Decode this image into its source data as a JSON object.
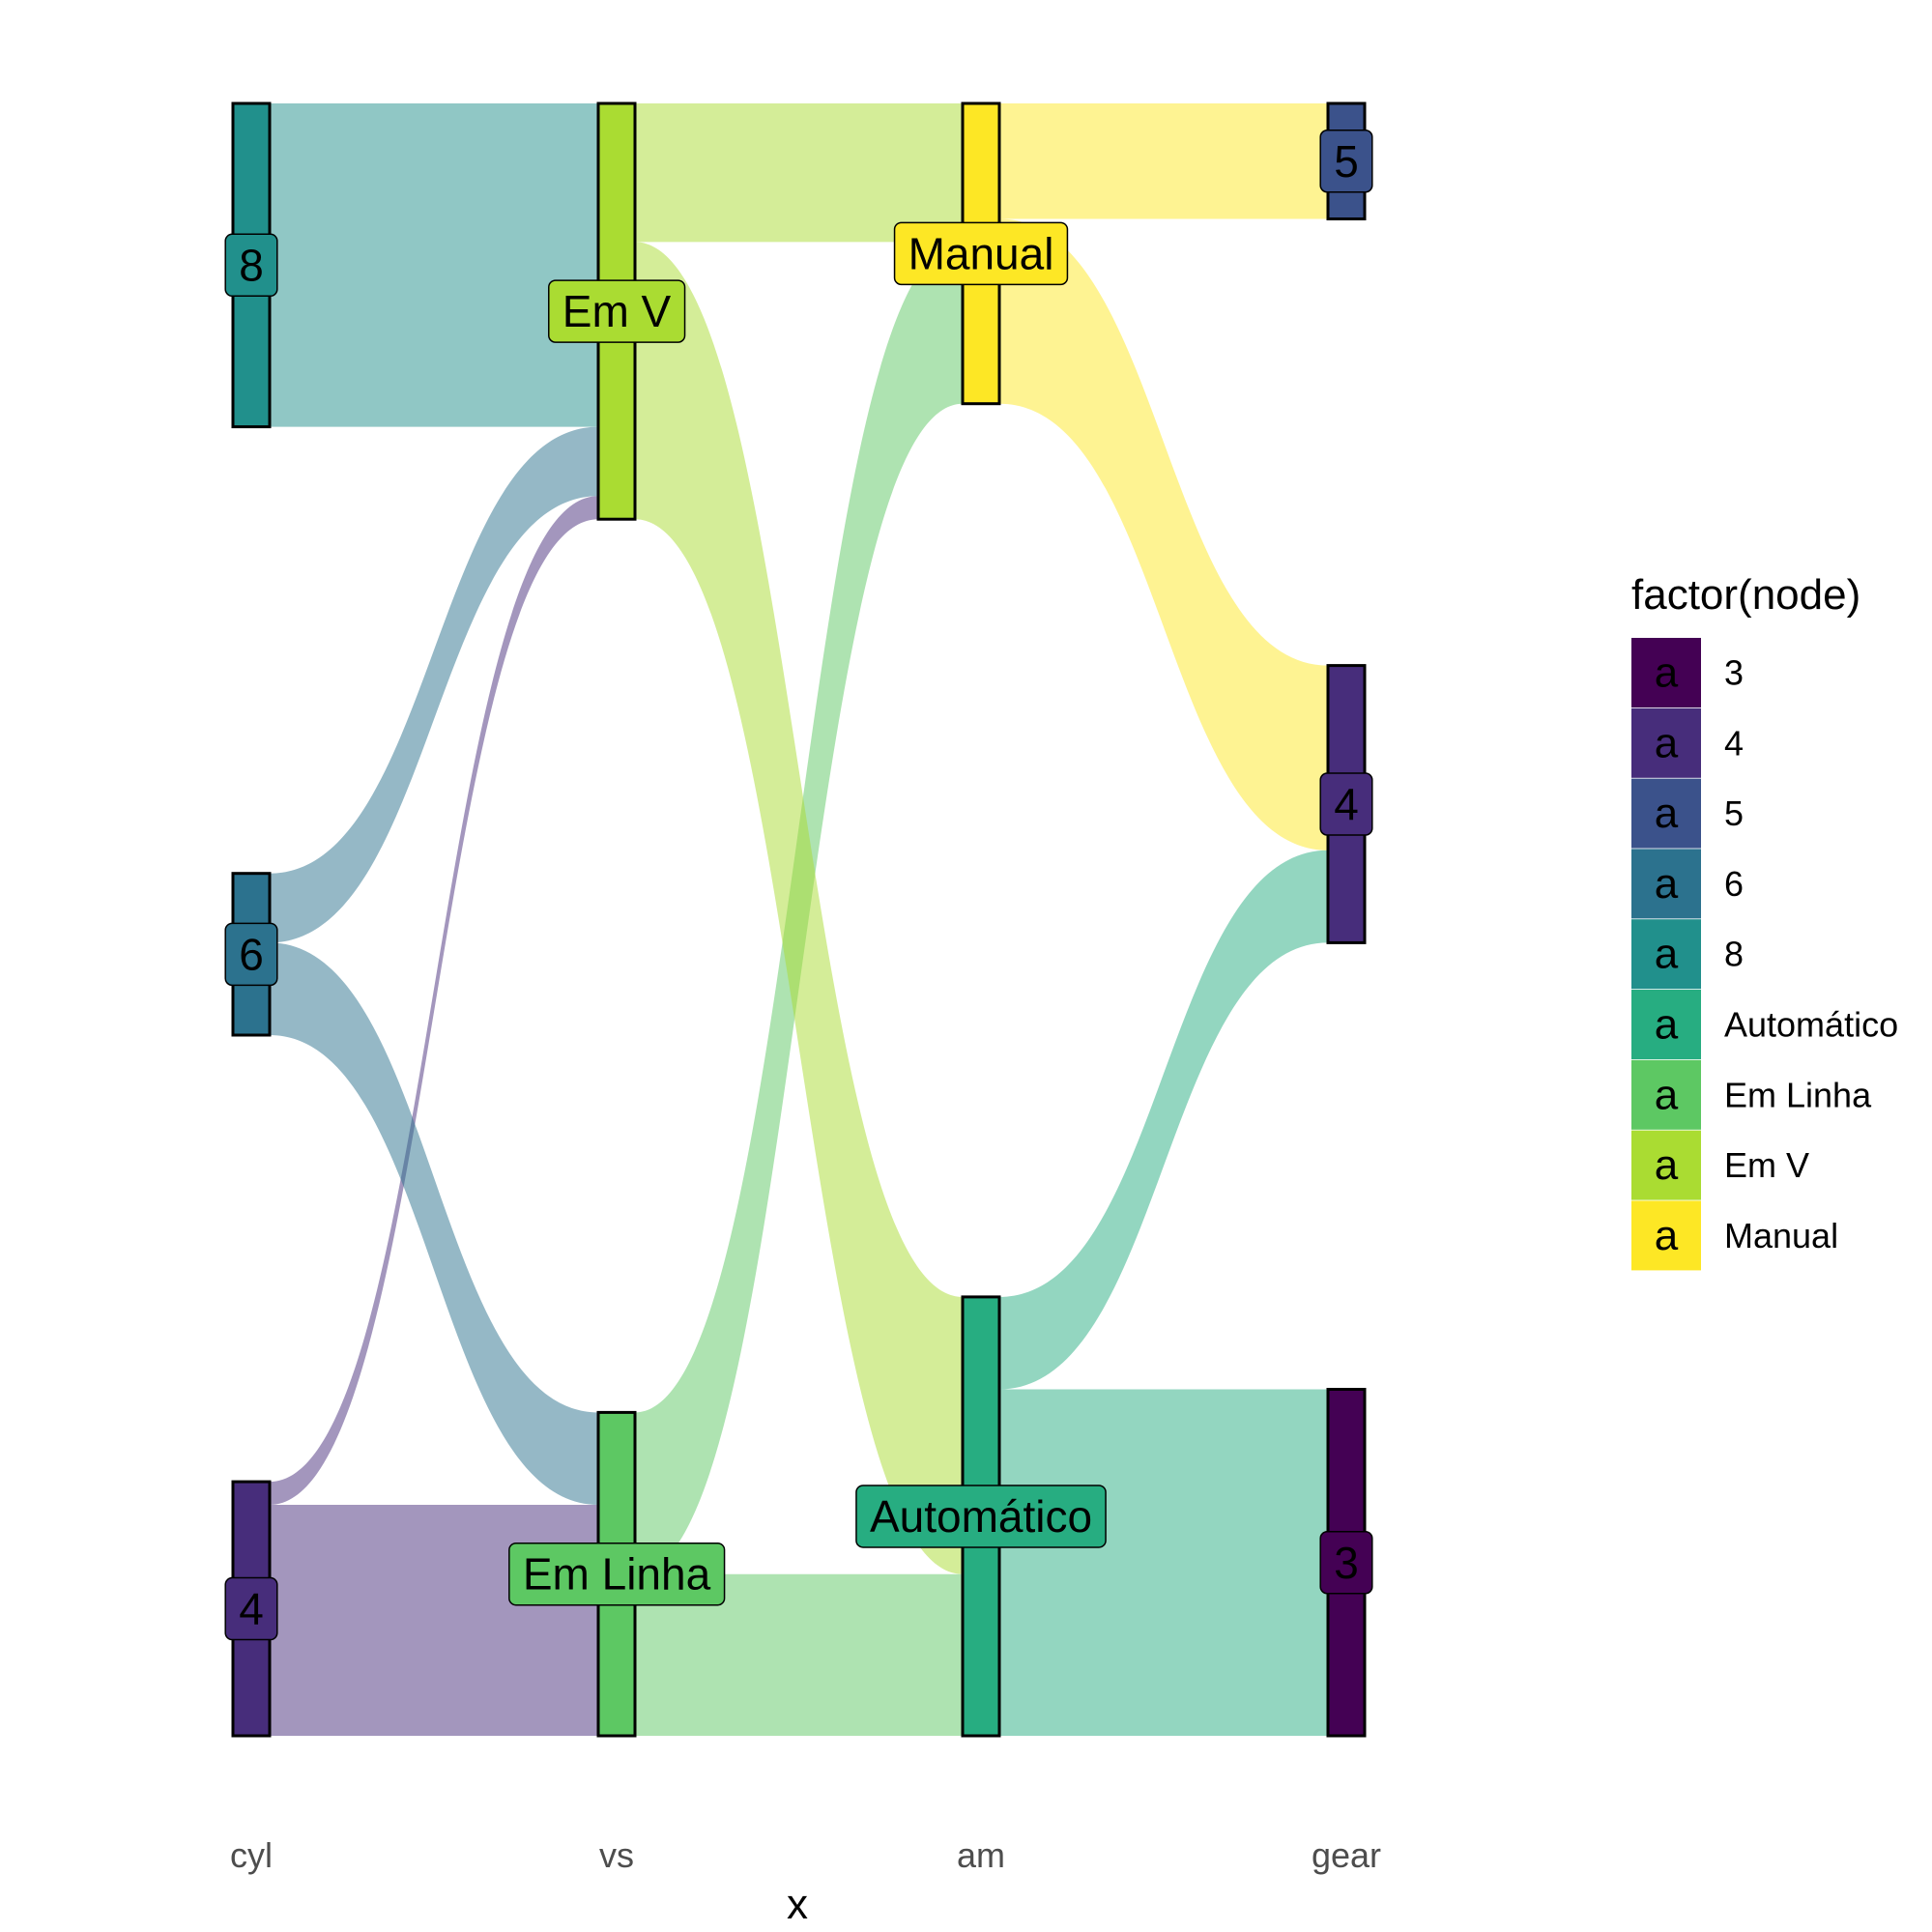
{
  "chart_data": {
    "type": "sankey",
    "title": "",
    "xlabel": "x",
    "ylabel": "",
    "axes": [
      "cyl",
      "vs",
      "am",
      "gear"
    ],
    "total": 32,
    "nodes": [
      {
        "axis": "cyl",
        "key": "cyl-4",
        "label": "4",
        "fill_key": "4",
        "count": 11
      },
      {
        "axis": "cyl",
        "key": "cyl-6",
        "label": "6",
        "fill_key": "6",
        "count": 7
      },
      {
        "axis": "cyl",
        "key": "cyl-8",
        "label": "8",
        "fill_key": "8",
        "count": 14
      },
      {
        "axis": "vs",
        "key": "vs-emlinha",
        "label": "Em Linha",
        "fill_key": "Em Linha",
        "count": 14
      },
      {
        "axis": "vs",
        "key": "vs-emv",
        "label": "Em V",
        "fill_key": "Em V",
        "count": 18
      },
      {
        "axis": "am",
        "key": "am-automatico",
        "label": "Automático",
        "fill_key": "Automático",
        "count": 19
      },
      {
        "axis": "am",
        "key": "am-manual",
        "label": "Manual",
        "fill_key": "Manual",
        "count": 13
      },
      {
        "axis": "gear",
        "key": "gear-3",
        "label": "3",
        "fill_key": "3",
        "count": 15
      },
      {
        "axis": "gear",
        "key": "gear-4",
        "label": "4",
        "fill_key": "4",
        "count": 12
      },
      {
        "axis": "gear",
        "key": "gear-5",
        "label": "5",
        "fill_key": "5",
        "count": 5
      }
    ],
    "flows": [
      {
        "from": "cyl-4",
        "to": "vs-emlinha",
        "value": 10
      },
      {
        "from": "cyl-4",
        "to": "vs-emv",
        "value": 1
      },
      {
        "from": "cyl-6",
        "to": "vs-emlinha",
        "value": 4
      },
      {
        "from": "cyl-6",
        "to": "vs-emv",
        "value": 3
      },
      {
        "from": "cyl-8",
        "to": "vs-emv",
        "value": 14
      },
      {
        "from": "vs-emlinha",
        "to": "am-automatico",
        "value": 7
      },
      {
        "from": "vs-emlinha",
        "to": "am-manual",
        "value": 7
      },
      {
        "from": "vs-emv",
        "to": "am-automatico",
        "value": 12
      },
      {
        "from": "vs-emv",
        "to": "am-manual",
        "value": 6
      },
      {
        "from": "am-automatico",
        "to": "gear-3",
        "value": 15
      },
      {
        "from": "am-automatico",
        "to": "gear-4",
        "value": 4
      },
      {
        "from": "am-manual",
        "to": "gear-4",
        "value": 8
      },
      {
        "from": "am-manual",
        "to": "gear-5",
        "value": 5
      }
    ],
    "legend": {
      "title": "factor(node)",
      "placement": "right",
      "key_glyph": "a",
      "items": [
        {
          "label": "3",
          "color": "#440154"
        },
        {
          "label": "4",
          "color": "#472D7B"
        },
        {
          "label": "5",
          "color": "#3B528B"
        },
        {
          "label": "6",
          "color": "#2C728E"
        },
        {
          "label": "8",
          "color": "#21908C"
        },
        {
          "label": "Automático",
          "color": "#27AD81"
        },
        {
          "label": "Em Linha",
          "color": "#5DC863"
        },
        {
          "label": "Em V",
          "color": "#AADC32"
        },
        {
          "label": "Manual",
          "color": "#FDE725"
        }
      ]
    },
    "grid": false
  }
}
